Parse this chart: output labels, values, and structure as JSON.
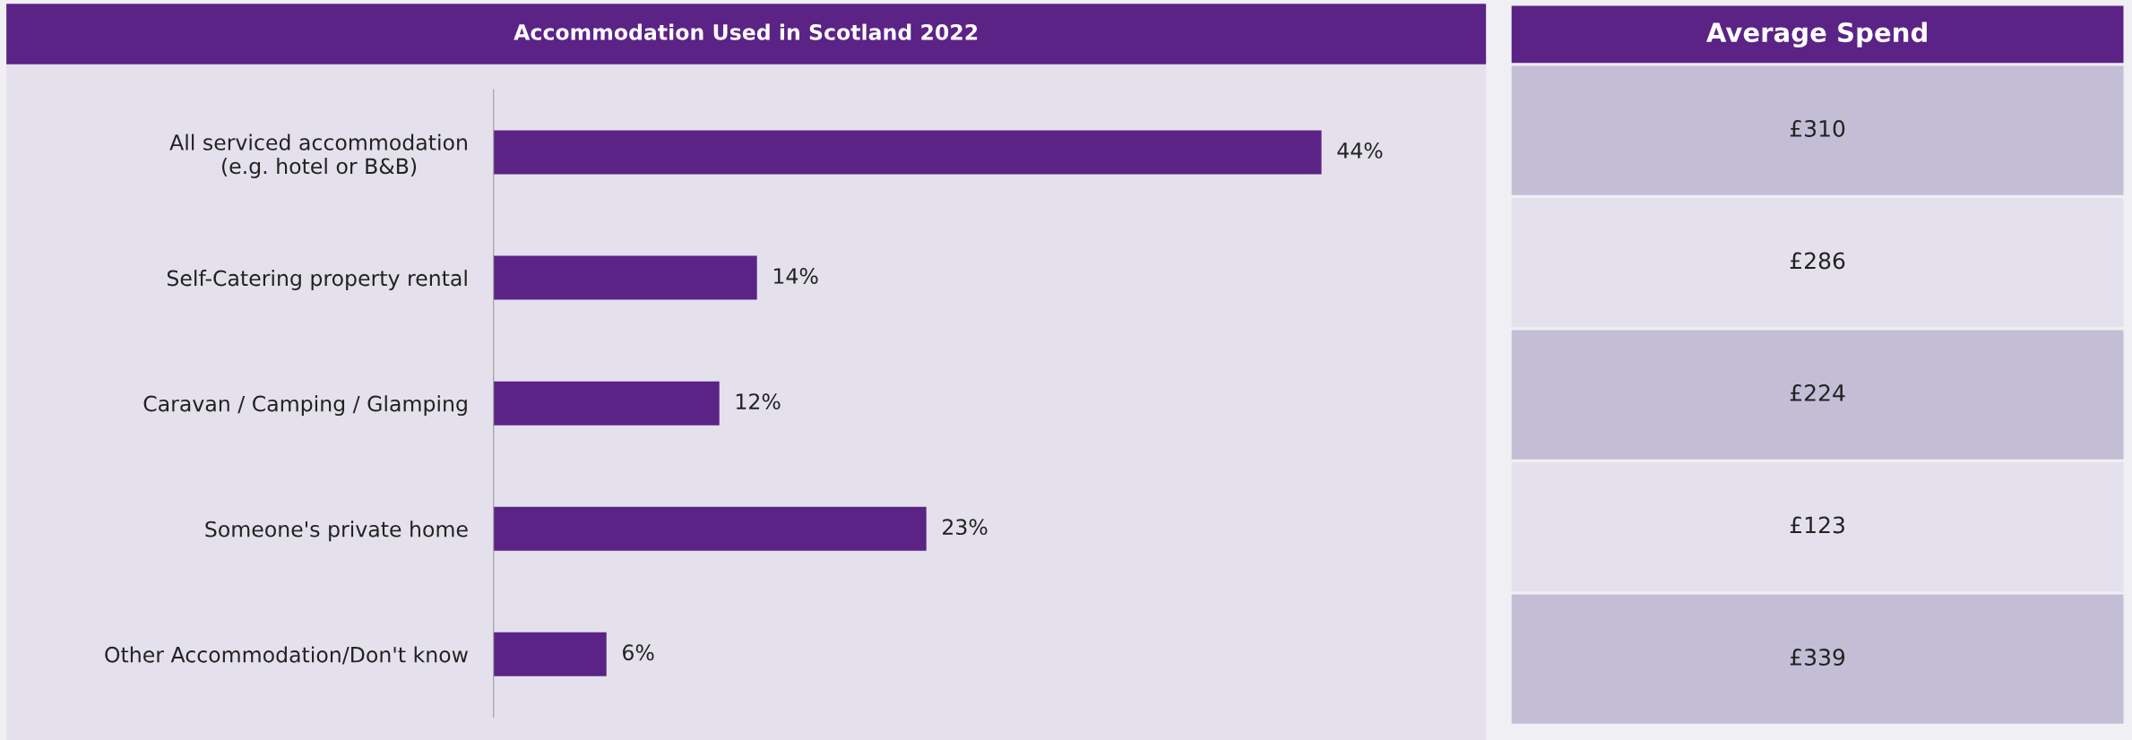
{
  "chart_data": [
    {
      "type": "bar",
      "orientation": "horizontal",
      "title": "Accommodation Used in Scotland 2022",
      "categories": [
        "All serviced accommodation\n(e.g. hotel or B&B)",
        "Self-Catering property rental",
        "Caravan / Camping / Glamping",
        "Someone's private home",
        "Other Accommodation/Don't know"
      ],
      "values": [
        44,
        14,
        12,
        23,
        6
      ],
      "value_labels": [
        "44%",
        "14%",
        "12%",
        "23%",
        "6%"
      ],
      "color": "#5b2386",
      "grid": false,
      "legend": false
    },
    {
      "type": "other",
      "title": "Average Spend",
      "annotations": [
        "£310",
        "£286",
        "£224",
        "£123",
        "£339"
      ],
      "colors": [
        "#c3bed6",
        "#e4e1ec",
        "#c3bed6",
        "#e4e1ec",
        "#c3bed6"
      ]
    }
  ]
}
